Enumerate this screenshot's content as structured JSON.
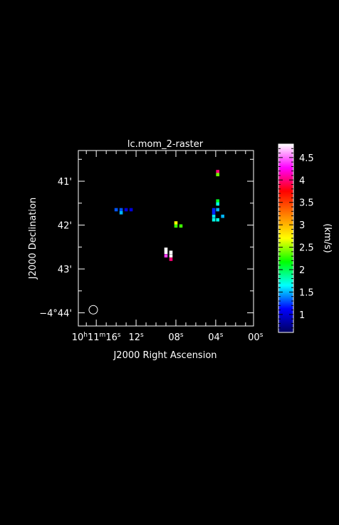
{
  "chart_data": {
    "type": "heatmap",
    "title": "lc.mom_2-raster",
    "xlabel": "J2000 Right Ascension",
    "ylabel": "J2000 Declination",
    "colorbar_label": "(km/s)",
    "colorbar_ticks": [
      "1",
      "1.5",
      "2",
      "2.5",
      "3",
      "3.5",
      "4",
      "4.5"
    ],
    "colorbar_range": [
      0.6,
      4.8
    ],
    "colormap": [
      "#000060",
      "#0000ff",
      "#00ffff",
      "#00ff00",
      "#ffff00",
      "#ff8000",
      "#ff0000",
      "#ff00ff",
      "#ffffff"
    ],
    "x_ticks": [
      {
        "ra_sec": 16,
        "label": "10h11m16s"
      },
      {
        "ra_sec": 12,
        "label": "12s"
      },
      {
        "ra_sec": 8,
        "label": "08s"
      },
      {
        "ra_sec": 4,
        "label": "04s"
      },
      {
        "ra_sec": 0,
        "label": "00s"
      }
    ],
    "y_ticks": [
      {
        "dec_arcmin": 41,
        "label": "41'"
      },
      {
        "dec_arcmin": 42,
        "label": "42'"
      },
      {
        "dec_arcmin": 43,
        "label": "43'"
      },
      {
        "dec_arcmin": 44,
        "label": "−4°44'"
      }
    ],
    "x_range_ra_sec": [
      17.8,
      0.2
    ],
    "y_range_dec_arcmin": [
      40.3,
      44.3
    ],
    "pixels": [
      {
        "ra": 14.0,
        "dec": 41.65,
        "v": 1.3
      },
      {
        "ra": 13.5,
        "dec": 41.65,
        "v": 1.3
      },
      {
        "ra": 13.0,
        "dec": 41.65,
        "v": 1.0
      },
      {
        "ra": 12.5,
        "dec": 41.65,
        "v": 1.0
      },
      {
        "ra": 13.5,
        "dec": 41.72,
        "v": 1.5
      },
      {
        "ra": 8.0,
        "dec": 41.95,
        "v": 2.7
      },
      {
        "ra": 8.0,
        "dec": 42.02,
        "v": 2.3
      },
      {
        "ra": 7.5,
        "dec": 42.02,
        "v": 2.3
      },
      {
        "ra": 9.0,
        "dec": 42.55,
        "v": 4.8
      },
      {
        "ra": 9.0,
        "dec": 42.62,
        "v": 4.8
      },
      {
        "ra": 8.5,
        "dec": 42.62,
        "v": 4.8
      },
      {
        "ra": 8.5,
        "dec": 42.7,
        "v": 4.8
      },
      {
        "ra": 9.0,
        "dec": 42.7,
        "v": 4.4
      },
      {
        "ra": 8.5,
        "dec": 42.78,
        "v": 4.0
      },
      {
        "ra": 3.8,
        "dec": 40.78,
        "v": 4.0
      },
      {
        "ra": 3.8,
        "dec": 40.85,
        "v": 2.4
      },
      {
        "ra": 3.8,
        "dec": 41.45,
        "v": 2.1
      },
      {
        "ra": 3.8,
        "dec": 41.52,
        "v": 1.7
      },
      {
        "ra": 4.2,
        "dec": 41.65,
        "v": 1.2
      },
      {
        "ra": 3.8,
        "dec": 41.65,
        "v": 1.5
      },
      {
        "ra": 4.2,
        "dec": 41.72,
        "v": 1.2
      },
      {
        "ra": 4.2,
        "dec": 41.8,
        "v": 1.6
      },
      {
        "ra": 3.3,
        "dec": 41.8,
        "v": 1.5
      },
      {
        "ra": 4.2,
        "dec": 41.88,
        "v": 1.7
      },
      {
        "ra": 3.8,
        "dec": 41.88,
        "v": 1.7
      }
    ],
    "beam": {
      "ra": 16.3,
      "dec": 43.93
    }
  }
}
